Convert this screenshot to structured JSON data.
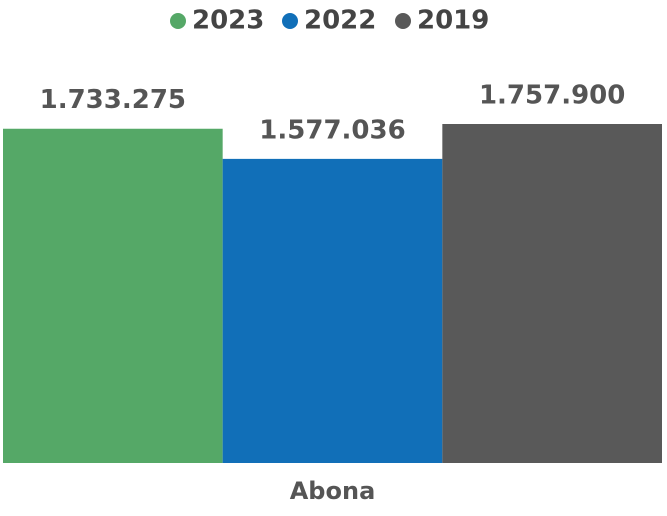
{
  "chart_data": {
    "type": "bar",
    "categories": [
      "Abona"
    ],
    "series": [
      {
        "name": "2023",
        "color": "#55a867",
        "values": [
          1733275
        ],
        "value_labels": [
          "1.733.275"
        ]
      },
      {
        "name": "2022",
        "color": "#116fb8",
        "values": [
          1577036
        ],
        "value_labels": [
          "1.577.036"
        ]
      },
      {
        "name": "2019",
        "color": "#595959",
        "values": [
          1757900
        ],
        "value_labels": [
          "1.757.900"
        ]
      }
    ]
  }
}
